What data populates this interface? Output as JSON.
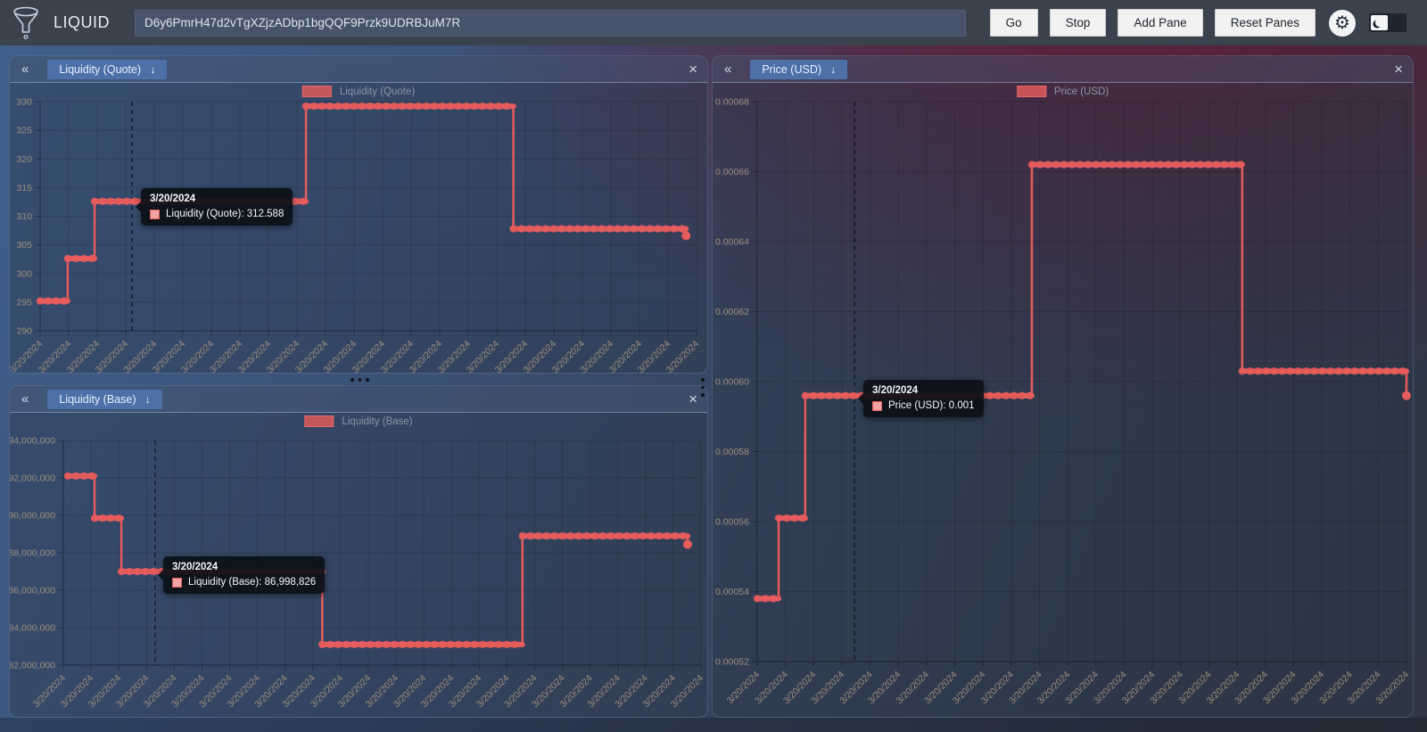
{
  "app": {
    "name": "LIQUID"
  },
  "icons": {
    "collapse": "«",
    "close": "×",
    "sort_down": "↓",
    "gear": "⚙"
  },
  "topbar": {
    "address_value": "D6y6PmrH47d2vTgXZjzADbp1bgQQF9Przk9UDRBJuM7R",
    "go_label": "Go",
    "stop_label": "Stop",
    "add_pane_label": "Add Pane",
    "reset_panes_label": "Reset Panes"
  },
  "colors": {
    "series": "#e65c5c",
    "series_fill": "#f0a3a3",
    "tab_accent": "#4d70a9",
    "axis_text": "#9c8d7b"
  },
  "panes": [
    {
      "tab_label": "Liquidity (Quote)"
    },
    {
      "tab_label": "Liquidity (Base)"
    },
    {
      "tab_label": "Price (USD)"
    }
  ],
  "chart_data": [
    {
      "type": "line",
      "stepped": true,
      "legend": "Liquidity (Quote)",
      "series_color": "#e65c5c",
      "x_tick_label": "3/20/2024",
      "x_tick_count": 24,
      "ylim": [
        290,
        330
      ],
      "yticks": [
        {
          "v": 330,
          "label": "330"
        },
        {
          "v": 325,
          "label": "325"
        },
        {
          "v": 320,
          "label": "320"
        },
        {
          "v": 315,
          "label": "315"
        },
        {
          "v": 310,
          "label": "310"
        },
        {
          "v": 305,
          "label": "305"
        },
        {
          "v": 300,
          "label": "300"
        },
        {
          "v": 295,
          "label": "295"
        },
        {
          "v": 290,
          "label": "290"
        }
      ],
      "points": [
        {
          "t": 0.0,
          "v": 295.2
        },
        {
          "t": 0.042,
          "v": 302.6
        },
        {
          "t": 0.083,
          "v": 312.588
        },
        {
          "t": 0.405,
          "v": 329.2
        },
        {
          "t": 0.721,
          "v": 307.8
        },
        {
          "t": 0.984,
          "v": 306.6
        }
      ],
      "crosshair_t": 0.14,
      "tooltip": {
        "date": "3/20/2024",
        "text": "Liquidity (Quote): 312.588"
      }
    },
    {
      "type": "line",
      "stepped": true,
      "legend": "Liquidity (Base)",
      "series_color": "#e65c5c",
      "x_tick_label": "3/20/2024",
      "x_tick_count": 24,
      "ylim": [
        82000000,
        94000000
      ],
      "yticks": [
        {
          "v": 94000000,
          "label": "94,000,000"
        },
        {
          "v": 92000000,
          "label": "92,000,000"
        },
        {
          "v": 90000000,
          "label": "90,000,000"
        },
        {
          "v": 88000000,
          "label": "88,000,000"
        },
        {
          "v": 86000000,
          "label": "86,000,000"
        },
        {
          "v": 84000000,
          "label": "84,000,000"
        },
        {
          "v": 82000000,
          "label": "82,000,000"
        }
      ],
      "points": [
        {
          "t": 0.007,
          "v": 92100000
        },
        {
          "t": 0.049,
          "v": 89850000
        },
        {
          "t": 0.091,
          "v": 86998826
        },
        {
          "t": 0.406,
          "v": 83100000
        },
        {
          "t": 0.72,
          "v": 88900000
        },
        {
          "t": 0.979,
          "v": 88450000
        }
      ],
      "crosshair_t": 0.144,
      "tooltip": {
        "date": "3/20/2024",
        "text": "Liquidity (Base): 86,998,826"
      }
    },
    {
      "type": "line",
      "stepped": true,
      "legend": "Price (USD)",
      "series_color": "#e65c5c",
      "x_tick_label": "3/20/2024",
      "x_tick_count": 24,
      "ylim": [
        0.00052,
        0.00068
      ],
      "yticks": [
        {
          "v": 0.00068,
          "label": "0.00068"
        },
        {
          "v": 0.00066,
          "label": "0.00066"
        },
        {
          "v": 0.00064,
          "label": "0.00064"
        },
        {
          "v": 0.00062,
          "label": "0.00062"
        },
        {
          "v": 0.0006,
          "label": "0.00060"
        },
        {
          "v": 0.00058,
          "label": "0.00058"
        },
        {
          "v": 0.00056,
          "label": "0.00056"
        },
        {
          "v": 0.00054,
          "label": "0.00054"
        },
        {
          "v": 0.00052,
          "label": "0.00052"
        }
      ],
      "points": [
        {
          "t": 0.0,
          "v": 0.000538
        },
        {
          "t": 0.033,
          "v": 0.000561
        },
        {
          "t": 0.074,
          "v": 0.000596
        },
        {
          "t": 0.423,
          "v": 0.000662
        },
        {
          "t": 0.747,
          "v": 0.000603
        },
        {
          "t": 1.0,
          "v": 0.000596
        }
      ],
      "crosshair_t": 0.15,
      "tooltip": {
        "date": "3/20/2024",
        "text": "Price (USD): 0.001"
      }
    }
  ]
}
